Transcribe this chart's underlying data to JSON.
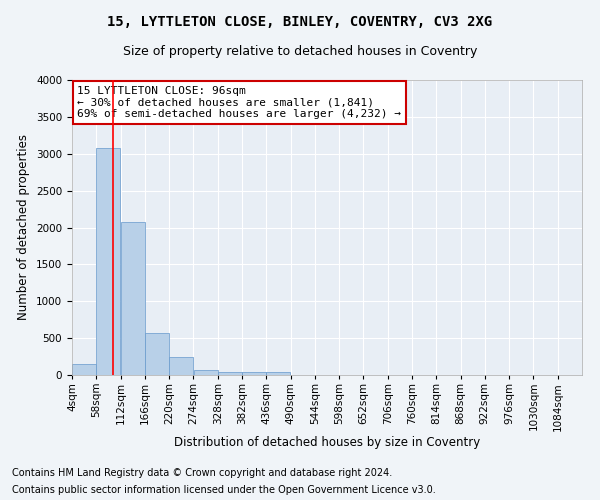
{
  "title": "15, LYTTLETON CLOSE, BINLEY, COVENTRY, CV3 2XG",
  "subtitle": "Size of property relative to detached houses in Coventry",
  "xlabel": "Distribution of detached houses by size in Coventry",
  "ylabel": "Number of detached properties",
  "bar_color": "#b8d0e8",
  "bar_edge_color": "#6699cc",
  "background_color": "#e8eef5",
  "grid_color": "#ffffff",
  "bin_starts": [
    4,
    58,
    112,
    166,
    220,
    274,
    328,
    382,
    436,
    490,
    544,
    598,
    652,
    706,
    760,
    814,
    868,
    922,
    976,
    1030
  ],
  "bin_width": 54,
  "bar_heights": [
    150,
    3080,
    2070,
    570,
    240,
    70,
    40,
    40,
    40,
    0,
    0,
    0,
    0,
    0,
    0,
    0,
    0,
    0,
    0,
    0
  ],
  "ylim": [
    0,
    4000
  ],
  "yticks": [
    0,
    500,
    1000,
    1500,
    2000,
    2500,
    3000,
    3500,
    4000
  ],
  "x_tick_labels": [
    "4sqm",
    "58sqm",
    "112sqm",
    "166sqm",
    "220sqm",
    "274sqm",
    "328sqm",
    "382sqm",
    "436sqm",
    "490sqm",
    "544sqm",
    "598sqm",
    "652sqm",
    "706sqm",
    "760sqm",
    "814sqm",
    "868sqm",
    "922sqm",
    "976sqm",
    "1030sqm",
    "1084sqm"
  ],
  "x_tick_positions": [
    4,
    58,
    112,
    166,
    220,
    274,
    328,
    382,
    436,
    490,
    544,
    598,
    652,
    706,
    760,
    814,
    868,
    922,
    976,
    1030,
    1084
  ],
  "red_line_x": 96,
  "annotation_title": "15 LYTTLETON CLOSE: 96sqm",
  "annotation_line1": "← 30% of detached houses are smaller (1,841)",
  "annotation_line2": "69% of semi-detached houses are larger (4,232) →",
  "annotation_box_color": "#ffffff",
  "annotation_border_color": "#cc0000",
  "footnote1": "Contains HM Land Registry data © Crown copyright and database right 2024.",
  "footnote2": "Contains public sector information licensed under the Open Government Licence v3.0.",
  "title_fontsize": 10,
  "subtitle_fontsize": 9,
  "axis_label_fontsize": 8.5,
  "tick_fontsize": 7.5,
  "annotation_fontsize": 8,
  "footnote_fontsize": 7
}
